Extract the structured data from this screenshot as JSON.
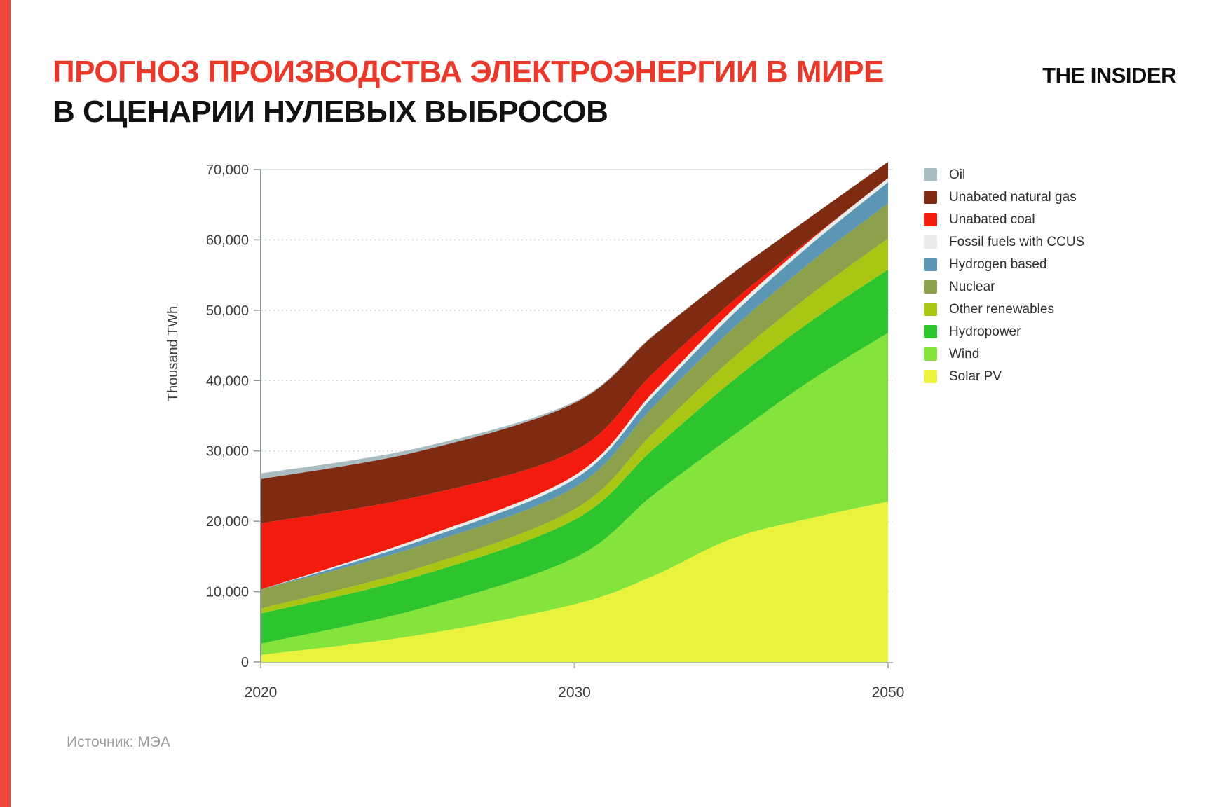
{
  "header": {
    "title_line1": "ПРОГНОЗ ПРОИЗВОДСТВА ЭЛЕКТРОЭНЕРГИИ В МИРЕ",
    "title_line2": "В СЦЕНАРИИ НУЛЕВЫХ ВЫБРОСОВ",
    "logo_text": "THE INSIDER"
  },
  "footer": {
    "source": "Источник: МЭА"
  },
  "colors": {
    "accent_red": "#e9392b",
    "stripe_red": "#f2473c",
    "title_black": "#121212",
    "y_axis_line": "#8d9898",
    "x_axis_line": "#b2baba",
    "grid_solid": "#d7dddd",
    "grid_dashed": "#d4d9d9",
    "tick_text": "#3d3d3d",
    "source_text": "#9a9a9a"
  },
  "chart_data": {
    "type": "area",
    "stacked": true,
    "title": "",
    "xlabel": "",
    "ylabel": "Thousand TWh",
    "units": "TWh",
    "ylim": [
      0,
      70000
    ],
    "yticks": [
      0,
      10000,
      20000,
      30000,
      40000,
      50000,
      60000,
      70000
    ],
    "ytick_labels": [
      "0",
      "10,000",
      "20,000",
      "30,000",
      "40,000",
      "50,000",
      "60,000",
      "70,000"
    ],
    "x_years": [
      2020,
      2025,
      2030,
      2035,
      2040,
      2045,
      2050
    ],
    "xticks": [
      2020,
      2030,
      2050
    ],
    "xtick_labels": [
      "2020",
      "2030",
      "2050"
    ],
    "x_axis_anchors": [
      [
        2020,
        0.0
      ],
      [
        2030,
        0.5
      ],
      [
        2050,
        1.0
      ]
    ],
    "grid": "horizontal, dashed (top 70,000 line solid)",
    "legend_position": "right",
    "series_top_to_bottom": [
      {
        "name": "Oil",
        "color": "#a9bcc2",
        "values": [
          800,
          500,
          200,
          100,
          50,
          0,
          0
        ]
      },
      {
        "name": "Unabated natural gas",
        "color": "#7e2b11",
        "values": [
          6300,
          6400,
          6800,
          5300,
          4000,
          3100,
          2300
        ]
      },
      {
        "name": "Unabated coal",
        "color": "#f31b0d",
        "values": [
          9400,
          6000,
          3500,
          2700,
          1200,
          200,
          0
        ]
      },
      {
        "name": "Fossil fuels with CCUS",
        "color": "#e9ece9",
        "values": [
          0,
          400,
          500,
          600,
          700,
          650,
          600
        ]
      },
      {
        "name": "Hydrogen based",
        "color": "#5b96b5",
        "values": [
          0,
          700,
          1200,
          1500,
          2000,
          2500,
          3000
        ]
      },
      {
        "name": "Nuclear",
        "color": "#8da04c",
        "values": [
          2700,
          3100,
          3100,
          3700,
          4200,
          4600,
          5000
        ]
      },
      {
        "name": "Other renewables",
        "color": "#a9c614",
        "values": [
          700,
          1100,
          1500,
          2300,
          3200,
          3800,
          4400
        ]
      },
      {
        "name": "Hydropower",
        "color": "#2ec42e",
        "values": [
          4300,
          4700,
          5400,
          6500,
          7800,
          8400,
          9000
        ]
      },
      {
        "name": "Wind",
        "color": "#85e43c",
        "values": [
          1600,
          3700,
          6600,
          11500,
          14500,
          19500,
          24000
        ]
      },
      {
        "name": "Solar PV",
        "color": "#e9f33e",
        "values": [
          1000,
          3800,
          8200,
          12200,
          17500,
          20400,
          22800
        ]
      }
    ],
    "totals_by_year": [
      26800,
      30400,
      37000,
      46400,
      55150,
      63150,
      71100
    ]
  }
}
